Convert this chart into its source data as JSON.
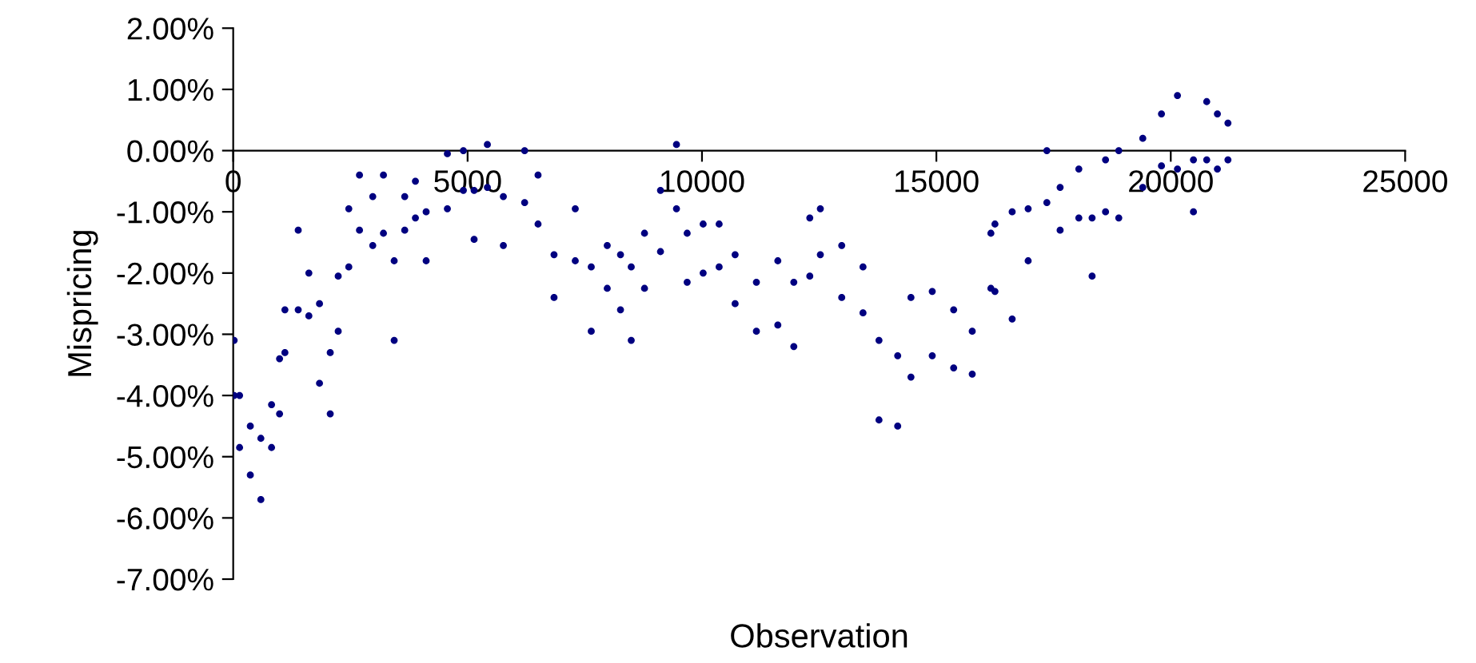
{
  "chart_data": {
    "type": "scatter",
    "xlabel": "Observation",
    "ylabel": "Mispricing",
    "xlim": [
      0,
      25000
    ],
    "ylim": [
      -7,
      2
    ],
    "xticks": [
      0,
      5000,
      10000,
      15000,
      20000,
      25000
    ],
    "yticks": [
      {
        "value": -7,
        "label": "-7.00%"
      },
      {
        "value": -6,
        "label": "-6.00%"
      },
      {
        "value": -5,
        "label": "-5.00%"
      },
      {
        "value": -4,
        "label": "-4.00%"
      },
      {
        "value": -3,
        "label": "-3.00%"
      },
      {
        "value": -2,
        "label": "-2.00%"
      },
      {
        "value": -1,
        "label": "-1.00%"
      },
      {
        "value": 0,
        "label": "0.00%"
      },
      {
        "value": 1,
        "label": "1.00%"
      },
      {
        "value": 2,
        "label": "2.00%"
      }
    ],
    "grid": false,
    "legend": false,
    "marker": "circle",
    "series": [
      {
        "color": "#000080",
        "x": [
          20,
          20,
          136,
          136,
          365,
          365,
          590,
          590,
          818,
          818,
          989,
          989,
          1103,
          1103,
          1387,
          1387,
          1614,
          1614,
          1841,
          1841,
          2070,
          2070,
          2240,
          2240,
          2466,
          2466,
          2694,
          2694,
          2977,
          2977,
          3205,
          3205,
          3434,
          3434,
          3659,
          3659,
          3887,
          3887,
          4116,
          4116,
          4569,
          4569,
          4910,
          4910,
          5139,
          5139,
          5422,
          5422,
          5763,
          5763,
          6217,
          6217,
          6503,
          6503,
          6844,
          6844,
          7297,
          7297,
          7638,
          7638,
          7979,
          7979,
          8262,
          8262,
          8491,
          8491,
          8774,
          8774,
          9115,
          9115,
          9456,
          9456,
          9684,
          9684,
          10025,
          10025,
          10366,
          10366,
          10707,
          10707,
          11161,
          11161,
          11618,
          11618,
          11959,
          11959,
          12300,
          12300,
          12525,
          12525,
          12981,
          12981,
          13435,
          13435,
          13776,
          13776,
          14175,
          14175,
          14458,
          14458,
          14912,
          14912,
          15369,
          15369,
          15765,
          15765,
          16163,
          16163,
          16250,
          16250,
          16617,
          16617,
          16958,
          16958,
          17357,
          17357,
          17640,
          17640,
          18039,
          18039,
          18322,
          18322,
          18609,
          18609,
          18891,
          18891,
          19403,
          19403,
          19802,
          19802,
          20143,
          20143,
          20484,
          20484,
          20767,
          20767,
          20995,
          20995,
          21220,
          21220
        ],
        "values": [
          -3.1,
          -4.0,
          -4.0,
          -4.85,
          -4.5,
          -5.3,
          -4.7,
          -5.7,
          -4.15,
          -4.85,
          -3.4,
          -4.3,
          -2.6,
          -3.3,
          -1.3,
          -2.6,
          -2.0,
          -2.7,
          -2.5,
          -3.8,
          -3.3,
          -4.3,
          -2.05,
          -2.95,
          -0.95,
          -1.9,
          -0.4,
          -1.3,
          -0.75,
          -1.55,
          -0.4,
          -1.35,
          -1.8,
          -3.1,
          -0.75,
          -1.3,
          -0.5,
          -1.1,
          -1.0,
          -1.8,
          -0.05,
          -0.95,
          0.0,
          -0.65,
          -0.65,
          -1.45,
          0.1,
          -0.6,
          -0.75,
          -1.55,
          0.0,
          -0.85,
          -0.4,
          -1.2,
          -1.7,
          -2.4,
          -0.95,
          -1.8,
          -1.9,
          -2.95,
          -1.55,
          -2.25,
          -1.7,
          -2.6,
          -1.9,
          -3.1,
          -1.35,
          -2.25,
          -0.65,
          -1.65,
          0.1,
          -0.95,
          -1.35,
          -2.15,
          -1.2,
          -2.0,
          -1.2,
          -1.9,
          -1.7,
          -2.5,
          -2.15,
          -2.95,
          -1.8,
          -2.85,
          -2.15,
          -3.2,
          -1.1,
          -2.05,
          -0.95,
          -1.7,
          -1.55,
          -2.4,
          -1.9,
          -2.65,
          -3.1,
          -4.4,
          -3.35,
          -4.5,
          -2.4,
          -3.7,
          -2.3,
          -3.35,
          -2.6,
          -3.55,
          -2.95,
          -3.65,
          -1.35,
          -2.25,
          -1.2,
          -2.3,
          -1.0,
          -2.75,
          -0.95,
          -1.8,
          0.0,
          -0.85,
          -0.6,
          -1.3,
          -0.3,
          -1.1,
          -1.1,
          -2.05,
          -0.15,
          -1.0,
          0.0,
          -1.1,
          0.2,
          -0.6,
          0.6,
          -0.25,
          0.9,
          -0.3,
          -0.15,
          -1.0,
          0.8,
          -0.15,
          0.6,
          -0.3,
          0.45,
          -0.15
        ]
      }
    ]
  }
}
